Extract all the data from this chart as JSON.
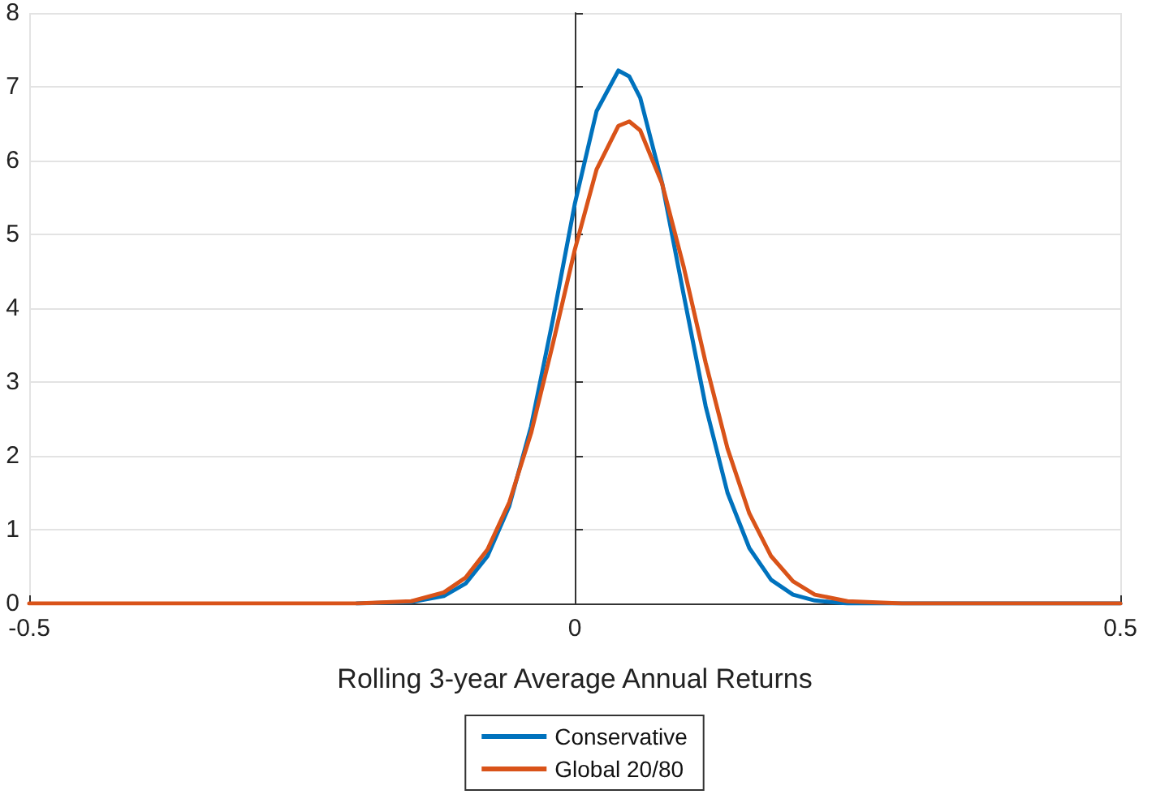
{
  "chart_data": {
    "type": "line",
    "xlabel": "Rolling 3-year Average Annual Returns",
    "x": [
      -0.5,
      -0.3,
      -0.2,
      -0.15,
      -0.12,
      -0.1,
      -0.08,
      -0.06,
      -0.04,
      -0.02,
      0,
      0.02,
      0.04,
      0.05,
      0.06,
      0.08,
      0.1,
      0.12,
      0.14,
      0.16,
      0.18,
      0.2,
      0.22,
      0.25,
      0.3,
      0.5
    ],
    "series": [
      {
        "name": "Conservative",
        "color": "#0072bd",
        "values": [
          null,
          null,
          0,
          0.02,
          0.1,
          0.27,
          0.64,
          1.32,
          2.4,
          3.85,
          5.41,
          6.67,
          7.22,
          7.14,
          6.85,
          5.7,
          4.17,
          2.67,
          1.5,
          0.75,
          0.32,
          0.12,
          0.04,
          0,
          0,
          0
        ]
      },
      {
        "name": "Global 20/80",
        "color": "#d95319",
        "values": [
          0,
          0,
          0,
          0.03,
          0.15,
          0.35,
          0.73,
          1.37,
          2.31,
          3.52,
          4.79,
          5.88,
          6.47,
          6.53,
          6.41,
          5.69,
          4.55,
          3.26,
          2.1,
          1.22,
          0.64,
          0.3,
          0.12,
          0.03,
          0,
          0
        ]
      }
    ],
    "xlim": [
      -0.5,
      0.5
    ],
    "xticks": [
      -0.5,
      0,
      0.5
    ],
    "ylim": [
      0,
      8
    ],
    "yticks": [
      0,
      1,
      2,
      3,
      4,
      5,
      6,
      7,
      8
    ],
    "grid": true,
    "legend": "bottom",
    "marker": "none",
    "line_style": "solid"
  }
}
